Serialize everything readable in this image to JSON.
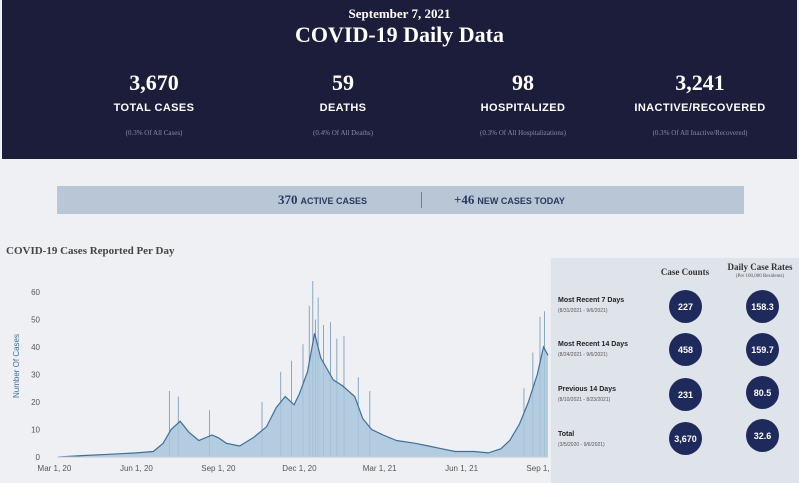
{
  "header": {
    "date": "September 7, 2021",
    "title": "COVID-19 Daily Data"
  },
  "stats": [
    {
      "value": "3,670",
      "label": "TOTAL CASES",
      "sub": "(0.3% Of All Cases)"
    },
    {
      "value": "59",
      "label": "DEATHS",
      "sub": "(0.4% Of All Deaths)"
    },
    {
      "value": "98",
      "label": "HOSPITALIZED",
      "sub": "(0.3% Of All Hospitalizations)"
    },
    {
      "value": "3,241",
      "label": "INACTIVE/RECOVERED",
      "sub": "(0.3% Of All Inactive/Recovered)"
    }
  ],
  "active": {
    "active_value": "370",
    "active_label": "ACTIVE CASES",
    "new_value": "+46",
    "new_label": "NEW CASES TODAY"
  },
  "rates_panel": {
    "col_counts": "Case Counts",
    "col_rates": "Daily Case Rates",
    "col_rates_sub": "(Per 100,000 Residents)",
    "rows": [
      {
        "label": "Most Recent 7 Days",
        "range": "(8/31/2021 - 9/6/2021)",
        "count": "227",
        "rate": "158.3"
      },
      {
        "label": "Most Recent 14 Days",
        "range": "(8/24/2021 - 9/6/2021)",
        "count": "458",
        "rate": "159.7"
      },
      {
        "label": "Previous 14 Days",
        "range": "(8/10/2021 - 8/23/2021)",
        "count": "231",
        "rate": "80.5"
      },
      {
        "label": "Total",
        "range": "(3/5/2020 - 9/6/2021)",
        "count": "3,670",
        "rate": "32.6"
      }
    ]
  },
  "colors": {
    "banner": "#1b1d3a",
    "bar_fill": "#b9c6d6",
    "area_fill": "#a9c5dc",
    "line": "#3d6f9c",
    "circle": "#1e2a5c"
  },
  "chart_data": {
    "type": "area",
    "title": "COVID-19 Cases Reported Per Day",
    "ylabel": "Number Of Cases",
    "ylim": [
      0,
      60
    ],
    "yticks": [
      0,
      10,
      20,
      30,
      40,
      50,
      60
    ],
    "x_tick_labels": [
      "Mar 1, 20",
      "Jun 1, 20",
      "Sep 1, 20",
      "Dec 1, 20",
      "Mar 1, 21",
      "Jun 1, 21",
      "Sep 1, 21"
    ],
    "x_tick_dates": [
      "2020-03-01",
      "2020-06-01",
      "2020-09-01",
      "2020-12-01",
      "2021-03-01",
      "2021-06-01",
      "2021-09-01"
    ],
    "x_range": [
      "2020-03-05",
      "2021-09-06"
    ],
    "series": [
      {
        "kind": "average",
        "points": [
          [
            "2020-03-05",
            0
          ],
          [
            "2020-04-01",
            0.5
          ],
          [
            "2020-05-01",
            1
          ],
          [
            "2020-06-01",
            1.5
          ],
          [
            "2020-06-20",
            2
          ],
          [
            "2020-07-01",
            5
          ],
          [
            "2020-07-10",
            10
          ],
          [
            "2020-07-20",
            13
          ],
          [
            "2020-07-30",
            9
          ],
          [
            "2020-08-10",
            6
          ],
          [
            "2020-08-25",
            8
          ],
          [
            "2020-09-01",
            7
          ],
          [
            "2020-09-10",
            5
          ],
          [
            "2020-09-25",
            4
          ],
          [
            "2020-10-10",
            7
          ],
          [
            "2020-10-25",
            11
          ],
          [
            "2020-11-05",
            18
          ],
          [
            "2020-11-15",
            22
          ],
          [
            "2020-11-25",
            19
          ],
          [
            "2020-12-01",
            23
          ],
          [
            "2020-12-10",
            31
          ],
          [
            "2020-12-18",
            45
          ],
          [
            "2020-12-25",
            36
          ],
          [
            "2021-01-01",
            32
          ],
          [
            "2021-01-08",
            28
          ],
          [
            "2021-01-18",
            26
          ],
          [
            "2021-02-01",
            22
          ],
          [
            "2021-02-10",
            14
          ],
          [
            "2021-02-20",
            10
          ],
          [
            "2021-03-05",
            8
          ],
          [
            "2021-03-20",
            6
          ],
          [
            "2021-04-10",
            5
          ],
          [
            "2021-04-25",
            4
          ],
          [
            "2021-05-10",
            3
          ],
          [
            "2021-05-25",
            2
          ],
          [
            "2021-06-15",
            2
          ],
          [
            "2021-07-01",
            1.5
          ],
          [
            "2021-07-15",
            3
          ],
          [
            "2021-07-25",
            6
          ],
          [
            "2021-08-05",
            12
          ],
          [
            "2021-08-15",
            20
          ],
          [
            "2021-08-25",
            30
          ],
          [
            "2021-09-01",
            40
          ],
          [
            "2021-09-06",
            37
          ]
        ]
      },
      {
        "kind": "daily_peaks",
        "points": [
          [
            "2020-07-08",
            24
          ],
          [
            "2020-07-18",
            22
          ],
          [
            "2020-08-22",
            17
          ],
          [
            "2020-10-20",
            20
          ],
          [
            "2020-11-10",
            31
          ],
          [
            "2020-11-22",
            35
          ],
          [
            "2020-12-05",
            41
          ],
          [
            "2020-12-12",
            55
          ],
          [
            "2020-12-16",
            64
          ],
          [
            "2020-12-19",
            50
          ],
          [
            "2020-12-22",
            58
          ],
          [
            "2020-12-28",
            48
          ],
          [
            "2021-01-05",
            49
          ],
          [
            "2021-01-12",
            43
          ],
          [
            "2021-01-20",
            44
          ],
          [
            "2021-02-05",
            29
          ],
          [
            "2021-02-18",
            24
          ],
          [
            "2021-08-10",
            25
          ],
          [
            "2021-08-20",
            38
          ],
          [
            "2021-08-28",
            51
          ],
          [
            "2021-09-02",
            53
          ]
        ]
      }
    ]
  }
}
